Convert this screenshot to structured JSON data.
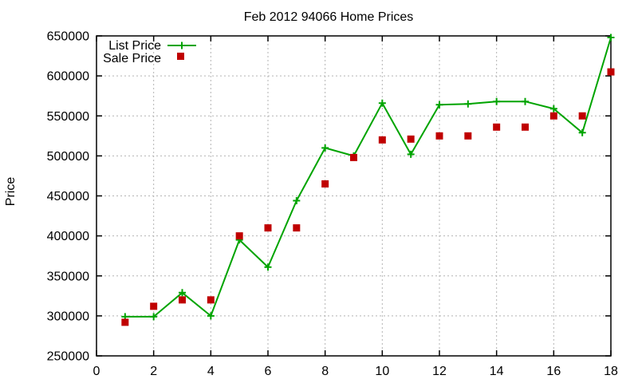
{
  "chart_data": {
    "type": "line",
    "title": "Feb 2012 94066 Home Prices",
    "xlabel": "",
    "ylabel": "Price",
    "xlim": [
      0,
      18
    ],
    "ylim": [
      250000,
      650000
    ],
    "xticks": [
      0,
      2,
      4,
      6,
      8,
      10,
      12,
      14,
      16,
      18
    ],
    "yticks": [
      250000,
      300000,
      350000,
      400000,
      450000,
      500000,
      550000,
      600000,
      650000
    ],
    "grid": true,
    "grid_color": "#b3b3b3",
    "legend_position": "top-left-inside",
    "x": [
      1,
      2,
      3,
      4,
      5,
      6,
      7,
      8,
      9,
      10,
      11,
      12,
      13,
      14,
      15,
      16,
      17,
      18
    ],
    "series": [
      {
        "name": "List Price",
        "color": "#00a400",
        "marker": "plus",
        "style": "line+markers",
        "values": [
          299000,
          299000,
          329000,
          300000,
          395000,
          361000,
          444000,
          510000,
          500000,
          566000,
          502000,
          564000,
          565000,
          568000,
          568000,
          559000,
          529000,
          648000
        ]
      },
      {
        "name": "Sale Price",
        "color": "#c00000",
        "marker": "square",
        "style": "markers",
        "values": [
          292000,
          312000,
          320000,
          320000,
          400000,
          410000,
          410000,
          465000,
          498000,
          520000,
          521000,
          525000,
          525000,
          536000,
          536000,
          550000,
          550000,
          605000
        ]
      }
    ]
  }
}
